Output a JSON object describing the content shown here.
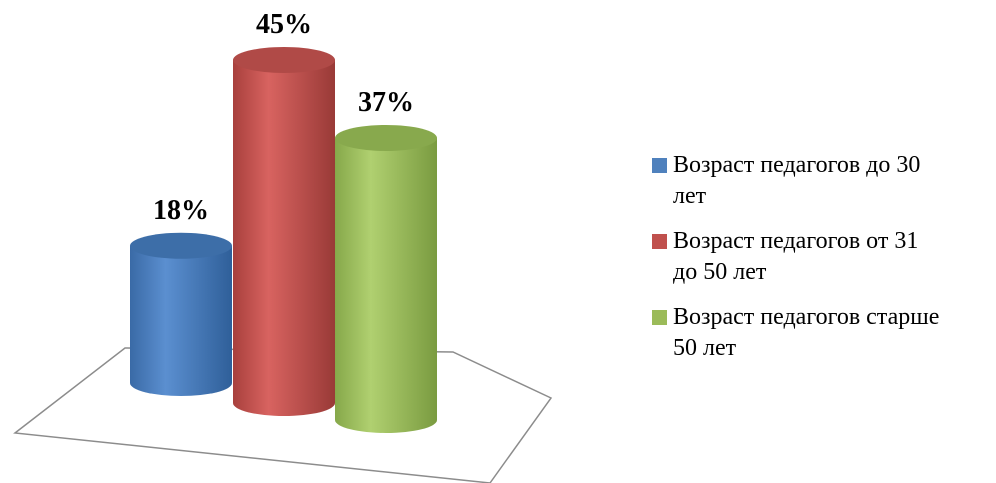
{
  "chart_data": {
    "type": "bar",
    "style": "3d-cylinder",
    "categories": [
      "Возраст педагогов до 30 лет",
      "Возраст педагогов от 31 до 50 лет",
      "Возраст педагогов старше 50 лет"
    ],
    "values": [
      18,
      45,
      37
    ],
    "value_labels": [
      "18%",
      "45%",
      "37%"
    ],
    "unit": "%",
    "colors": [
      "#4f81bd",
      "#c0504d",
      "#9bbb59"
    ],
    "title": "",
    "xlabel": "",
    "ylabel": "",
    "ylim": [
      0,
      45
    ],
    "grid": false,
    "legend_position": "right"
  },
  "legend": {
    "items": [
      {
        "lines": [
          "Возраст педагогов до 30",
          "лет"
        ],
        "color": "#4f81bd"
      },
      {
        "lines": [
          "Возраст педагогов от 31",
          "до 50 лет"
        ],
        "color": "#c0504d"
      },
      {
        "lines": [
          "Возраст педагогов старше",
          "50 лет"
        ],
        "color": "#9bbb59"
      }
    ]
  }
}
